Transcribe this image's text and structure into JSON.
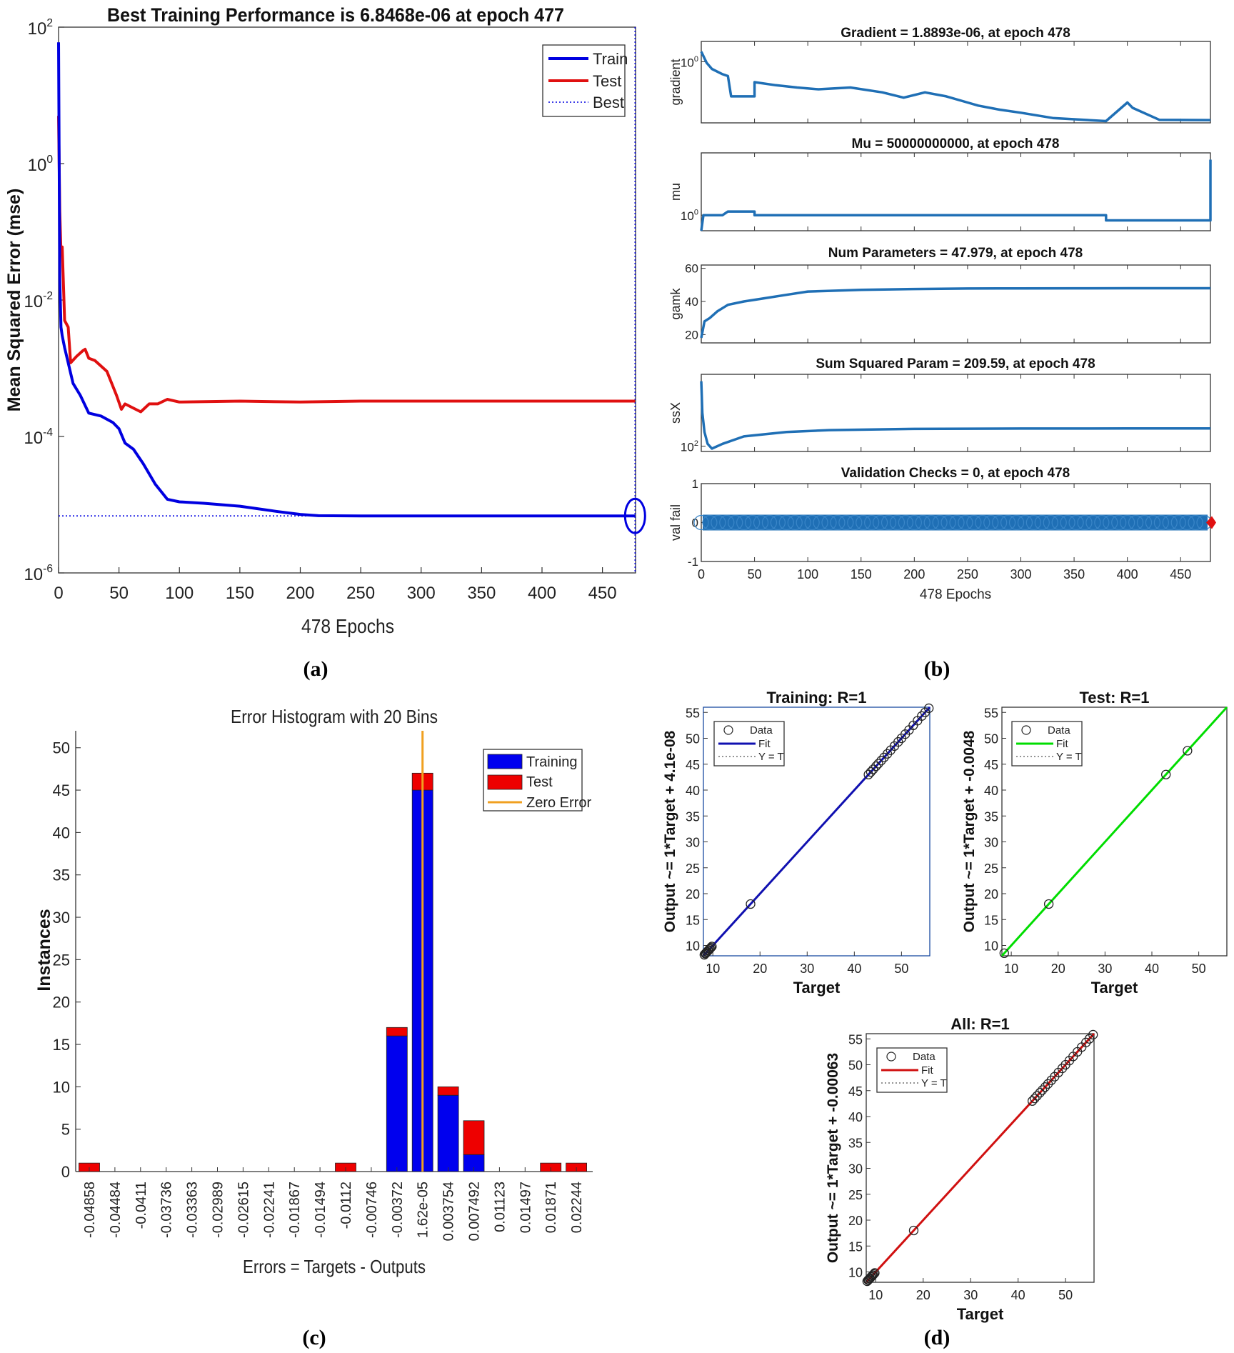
{
  "figure": {
    "panel_labels": [
      "(a)",
      "(b)",
      "(c)",
      "(d)"
    ]
  },
  "colors": {
    "train": "#0000e0",
    "test": "#e01010",
    "matlab_blue": "#1f6fb5",
    "zero_error": "#f0a020",
    "test_fit": "#00dd00",
    "all_fit": "#d01010"
  },
  "chart_data": [
    {
      "id": "a",
      "type": "line",
      "title": "Best Training Performance is 6.8468e-06 at epoch 477",
      "xlabel": "478 Epochs",
      "ylabel": "Mean Squared Error  (mse)",
      "yscale": "log",
      "xlim": [
        0,
        478
      ],
      "ylim": [
        1e-06,
        100
      ],
      "xticks": [
        0,
        50,
        100,
        150,
        200,
        250,
        300,
        350,
        400,
        450
      ],
      "yticks": [
        {
          "base": "10",
          "exp": "2"
        },
        {
          "base": "10",
          "exp": "0"
        },
        {
          "base": "10",
          "exp": "-2"
        },
        {
          "base": "10",
          "exp": "-4"
        },
        {
          "base": "10",
          "exp": "-6"
        }
      ],
      "legend": [
        "Train",
        "Test",
        "Best"
      ],
      "legend_position": "top-right",
      "best": {
        "epoch": 477,
        "value": 6.8468e-06
      },
      "series": [
        {
          "name": "Train",
          "x": [
            0,
            1,
            2,
            3,
            5,
            8,
            12,
            18,
            25,
            35,
            45,
            50,
            55,
            62,
            70,
            80,
            90,
            100,
            120,
            150,
            180,
            200,
            215,
            250,
            300,
            350,
            400,
            450,
            477
          ],
          "y": [
            60,
            0.02,
            0.004,
            0.003,
            0.002,
            0.0012,
            0.0006,
            0.0004,
            0.00022,
            0.0002,
            0.00016,
            0.00013,
            8e-05,
            6.5e-05,
            4e-05,
            2e-05,
            1.2e-05,
            1.1e-05,
            1.05e-05,
            9.5e-06,
            8e-06,
            7.2e-06,
            6.9e-06,
            6.85e-06,
            6.85e-06,
            6.85e-06,
            6.85e-06,
            6.85e-06,
            6.8468e-06
          ]
        },
        {
          "name": "Test",
          "x": [
            0,
            1,
            2,
            3,
            5,
            8,
            10,
            15,
            20,
            22,
            25,
            30,
            40,
            48,
            52,
            55,
            62,
            68,
            75,
            82,
            90,
            100,
            150,
            200,
            250,
            300,
            350,
            400,
            477
          ],
          "y": [
            5,
            0.2,
            0.05,
            0.06,
            0.005,
            0.004,
            0.0012,
            0.0015,
            0.0018,
            0.0019,
            0.0014,
            0.0013,
            0.0009,
            0.0004,
            0.00025,
            0.0003,
            0.00026,
            0.00023,
            0.0003,
            0.0003,
            0.00035,
            0.00032,
            0.00033,
            0.00032,
            0.00033,
            0.00033,
            0.00033,
            0.00033,
            0.00033
          ]
        }
      ]
    },
    {
      "id": "b",
      "type": "line",
      "xlabel": "478 Epochs",
      "xlim": [
        0,
        478
      ],
      "xticks": [
        0,
        50,
        100,
        150,
        200,
        250,
        300,
        350,
        400,
        450
      ],
      "subplots": [
        {
          "title": "Gradient = 1.8893e-06, at epoch 478",
          "ylabel": "gradient",
          "yscale": "log",
          "ylim": [
            1e-06,
            100
          ],
          "ytick_labels": [
            {
              "base": "10",
              "exp": "0"
            }
          ],
          "ytick_values": [
            1
          ],
          "x": [
            0,
            5,
            10,
            20,
            25,
            28,
            50,
            50,
            70,
            90,
            110,
            140,
            170,
            190,
            210,
            230,
            250,
            260,
            280,
            300,
            330,
            380,
            400,
            405,
            430,
            460,
            478
          ],
          "y": [
            10,
            0.8,
            0.2,
            0.06,
            0.04,
            0.0004,
            0.0004,
            0.01,
            0.005,
            0.003,
            0.002,
            0.003,
            0.001,
            0.0003,
            0.001,
            0.0004,
            0.0001,
            5e-05,
            2e-05,
            1e-05,
            3e-06,
            1.5e-06,
            0.0001,
            3e-05,
            2e-06,
            1.9e-06,
            1.8893e-06
          ]
        },
        {
          "title": "Mu = 50000000000, at epoch 478",
          "ylabel": "mu",
          "yscale": "log",
          "ylim": [
            0.001,
            1000000000000.0
          ],
          "ytick_labels": [
            {
              "base": "10",
              "exp": "0"
            }
          ],
          "ytick_values": [
            1
          ],
          "x": [
            0,
            2,
            5,
            10,
            20,
            25,
            50,
            50,
            100,
            200,
            300,
            380,
            380,
            420,
            478,
            478
          ],
          "y": [
            0.001,
            1,
            1,
            1,
            1,
            5,
            5,
            1,
            1,
            1,
            1,
            1,
            0.1,
            0.1,
            0.1,
            50000000000
          ]
        },
        {
          "title": "Num Parameters = 47.979, at epoch 478",
          "ylabel": "gamk",
          "ylim": [
            15,
            62
          ],
          "yticks": [
            20,
            40,
            60
          ],
          "x": [
            0,
            3,
            8,
            15,
            25,
            40,
            60,
            80,
            100,
            150,
            200,
            250,
            300,
            350,
            400,
            478
          ],
          "y": [
            18,
            28,
            30,
            34,
            38,
            40,
            42,
            44,
            46,
            47,
            47.5,
            47.8,
            47.9,
            47.95,
            47.97,
            47.979
          ]
        },
        {
          "title": "Sum Squared Param = 209.59, at epoch 478",
          "ylabel": "ssX",
          "yscale": "log",
          "ylim": [
            80,
            2000
          ],
          "ytick_labels": [
            {
              "base": "10",
              "exp": "2"
            }
          ],
          "ytick_values": [
            100
          ],
          "x": [
            0,
            1,
            3,
            6,
            10,
            20,
            40,
            80,
            120,
            200,
            300,
            400,
            478
          ],
          "y": [
            1500,
            400,
            180,
            110,
            90,
            110,
            150,
            180,
            195,
            205,
            208,
            209,
            209.59
          ]
        },
        {
          "title": "Validation Checks = 0, at epoch 478",
          "ylabel": "val fail",
          "ylim": [
            -1,
            1
          ],
          "yticks": [
            -1,
            0,
            1
          ],
          "values": "0 at every epoch 0-478"
        }
      ]
    },
    {
      "id": "c",
      "type": "bar",
      "title": "Error Histogram with 20 Bins",
      "xlabel": "Errors = Targets - Outputs",
      "ylabel": "Instances",
      "ylim": [
        0,
        52
      ],
      "yticks": [
        0,
        5,
        10,
        15,
        20,
        25,
        30,
        35,
        40,
        45,
        50
      ],
      "categories": [
        "-0.04858",
        "-0.04484",
        "-0.0411",
        "-0.03736",
        "-0.03363",
        "-0.02989",
        "-0.02615",
        "-0.02241",
        "-0.01867",
        "-0.01494",
        "-0.0112",
        "-0.00746",
        "-0.00372",
        "1.62e-05",
        "0.003754",
        "0.007492",
        "0.01123",
        "0.01497",
        "0.01871",
        "0.02244"
      ],
      "series": [
        {
          "name": "Training",
          "values": [
            0,
            0,
            0,
            0,
            0,
            0,
            0,
            0,
            0,
            0,
            0,
            0,
            16,
            45,
            9,
            2,
            0,
            0,
            0,
            0
          ]
        },
        {
          "name": "Test",
          "values": [
            1,
            0,
            0,
            0,
            0,
            0,
            0,
            0,
            0,
            0,
            1,
            0,
            1,
            2,
            1,
            4,
            0,
            0,
            1,
            1
          ]
        }
      ],
      "zero_error_bin": 13,
      "legend": [
        "Training",
        "Test",
        "Zero Error"
      ],
      "legend_position": "top-right"
    },
    {
      "id": "d",
      "type": "scatter",
      "subplots": [
        {
          "title": "Training: R=1",
          "xlabel": "Target",
          "ylabel": "Output ~= 1*Target + 4.1e-08",
          "xlim": [
            8,
            56
          ],
          "ylim": [
            8,
            56
          ],
          "xticks": [
            10,
            20,
            30,
            40,
            50
          ],
          "yticks": [
            10,
            15,
            20,
            25,
            30,
            35,
            40,
            45,
            50,
            55
          ],
          "legend": [
            "Data",
            "Fit",
            "Y = T"
          ],
          "legend_position": "top-left",
          "points": [
            8.2,
            8.4,
            8.5,
            8.7,
            8.8,
            9.0,
            9.1,
            9.3,
            9.4,
            9.6,
            9.8,
            18.0,
            43.0,
            43.5,
            44.0,
            44.6,
            45.1,
            45.7,
            46.3,
            47.0,
            47.7,
            48.5,
            49.3,
            50.0,
            50.8,
            51.6,
            52.5,
            53.4,
            54.3,
            55.0,
            55.8
          ]
        },
        {
          "title": "Test: R=1",
          "xlabel": "Target",
          "ylabel": "Output ~= 1*Target + -0.0048",
          "xlim": [
            8,
            56
          ],
          "ylim": [
            8,
            56
          ],
          "xticks": [
            10,
            20,
            30,
            40,
            50
          ],
          "yticks": [
            10,
            15,
            20,
            25,
            30,
            35,
            40,
            45,
            50,
            55
          ],
          "legend": [
            "Data",
            "Fit",
            "Y = T"
          ],
          "legend_position": "top-left",
          "points": [
            8.5,
            18.0,
            43.0,
            47.6
          ]
        },
        {
          "title": "All: R=1",
          "xlabel": "Target",
          "ylabel": "Output ~= 1*Target + -0.00063",
          "xlim": [
            8,
            56
          ],
          "ylim": [
            8,
            56
          ],
          "xticks": [
            10,
            20,
            30,
            40,
            50
          ],
          "yticks": [
            10,
            15,
            20,
            25,
            30,
            35,
            40,
            45,
            50,
            55
          ],
          "legend": [
            "Data",
            "Fit",
            "Y = T"
          ],
          "legend_position": "top-left",
          "points": [
            8.2,
            8.4,
            8.5,
            8.7,
            8.8,
            9.0,
            9.1,
            9.3,
            9.4,
            9.6,
            9.8,
            18.0,
            43.0,
            43.5,
            44.0,
            44.6,
            45.1,
            45.7,
            46.3,
            47.0,
            47.7,
            48.5,
            49.3,
            50.0,
            50.8,
            51.6,
            52.5,
            53.4,
            54.3,
            55.0,
            55.8
          ]
        }
      ]
    }
  ]
}
